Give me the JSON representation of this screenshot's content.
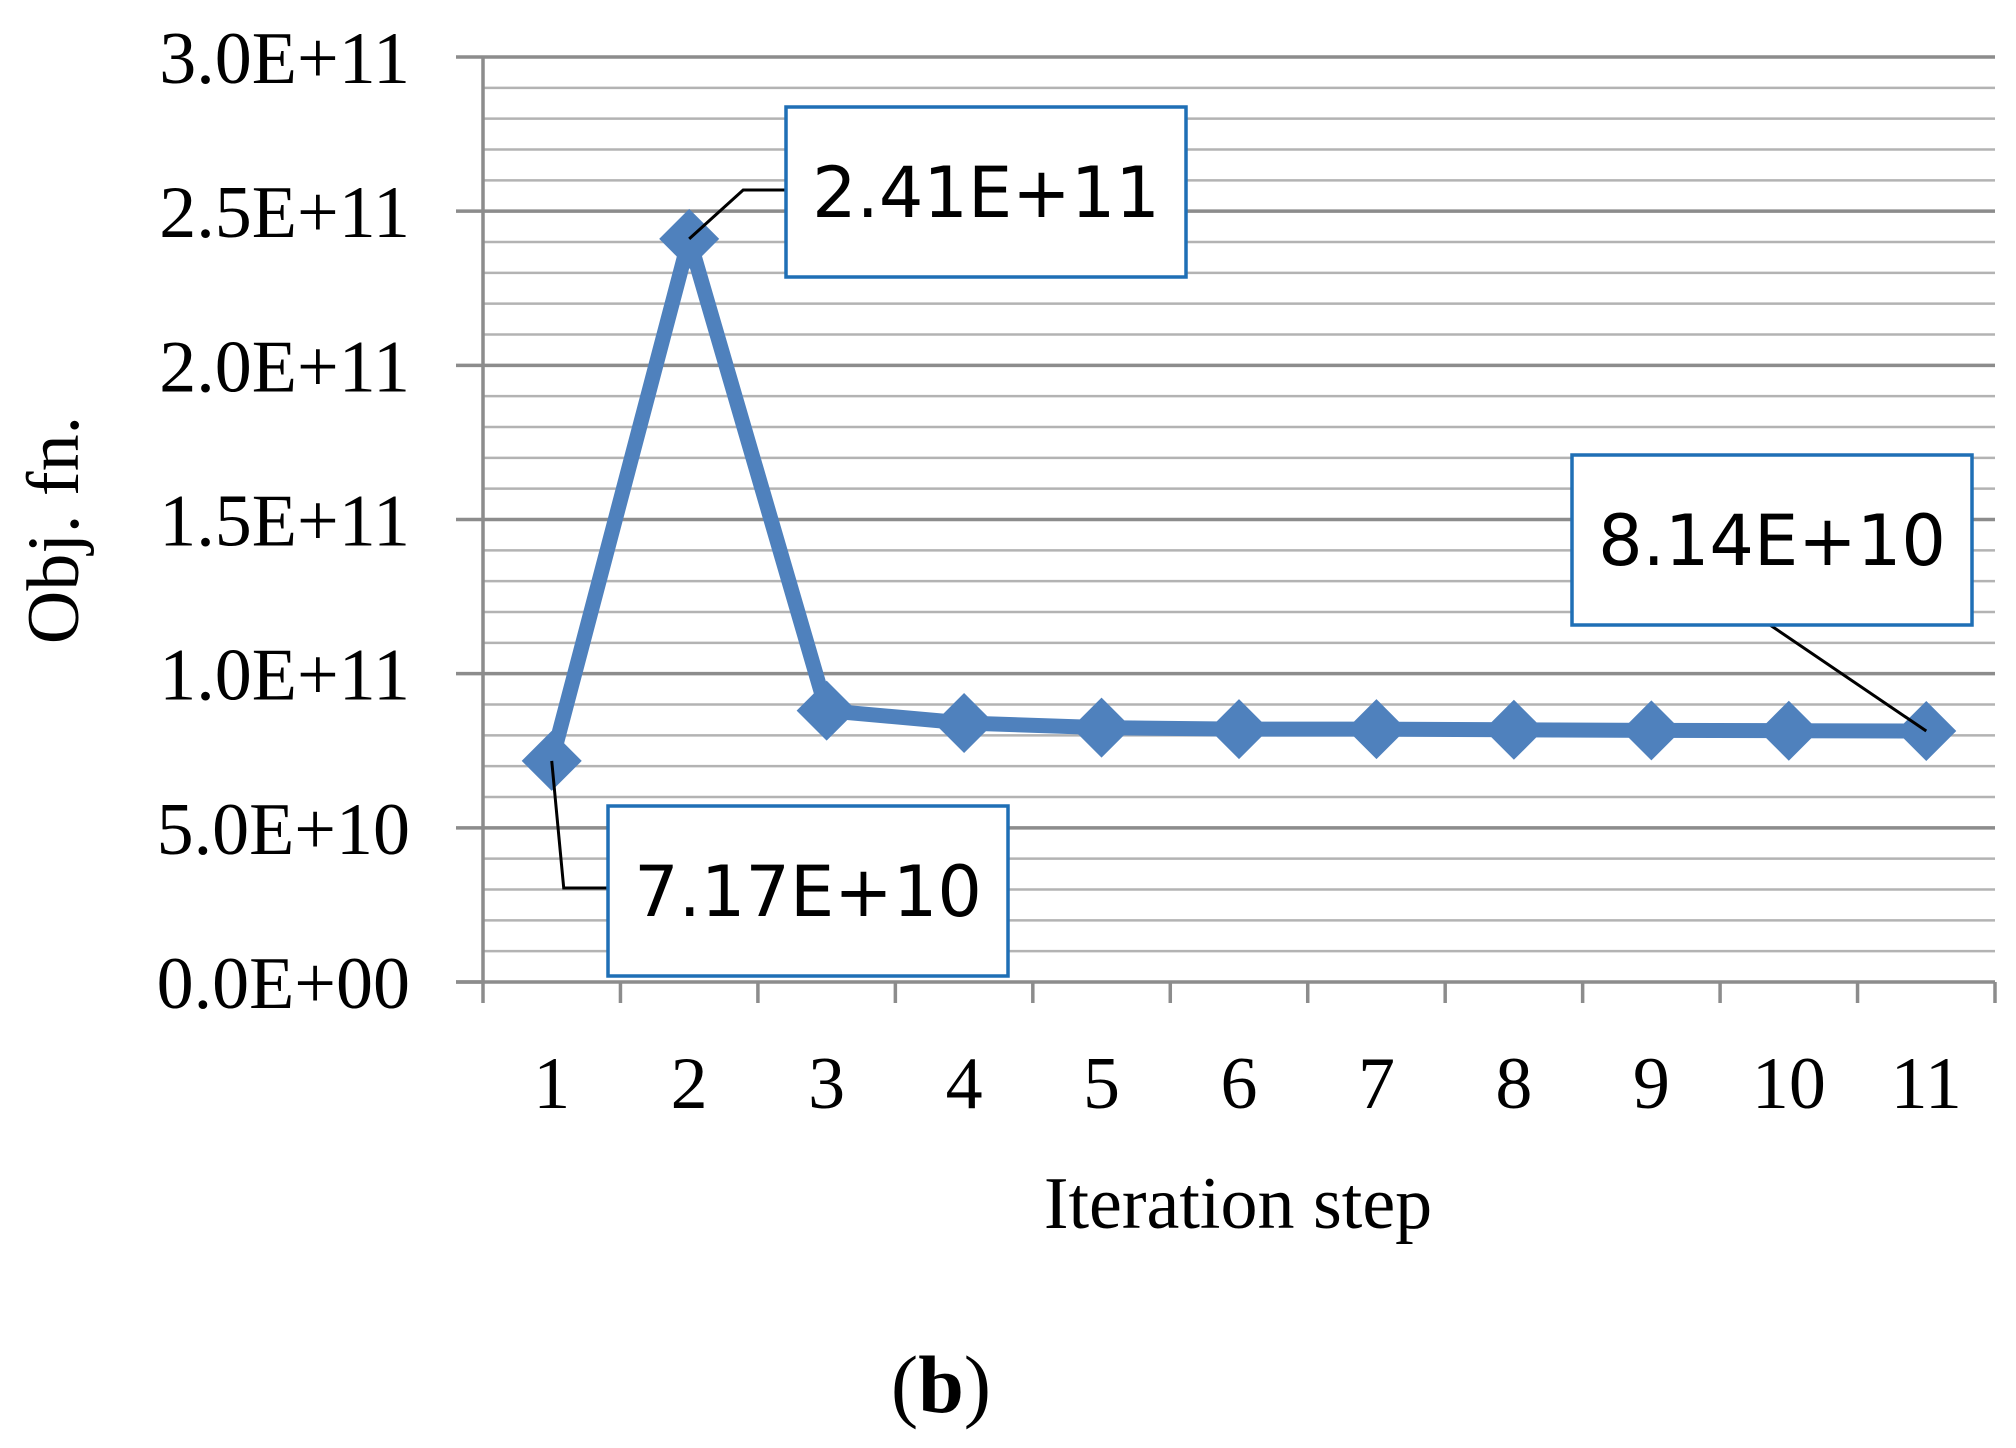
{
  "chart_data": {
    "type": "line",
    "title": "",
    "xlabel": "Iteration step",
    "ylabel": "Obj. fn.",
    "x": [
      1,
      2,
      3,
      4,
      5,
      6,
      7,
      8,
      9,
      10,
      11
    ],
    "x_tick_labels": [
      "1",
      "2",
      "3",
      "4",
      "5",
      "6",
      "7",
      "8",
      "9",
      "10",
      "11"
    ],
    "series": [
      {
        "values": [
          71700000000.0,
          241000000000.0,
          88000000000.0,
          84000000000.0,
          82500000000.0,
          82000000000.0,
          82000000000.0,
          81800000000.0,
          81600000000.0,
          81500000000.0,
          81400000000.0
        ],
        "color": "#4f81bd",
        "marker": "diamond"
      }
    ],
    "ylim": [
      0,
      300000000000.0
    ],
    "y_ticks": [
      0,
      50000000000.0,
      100000000000.0,
      150000000000.0,
      200000000000.0,
      250000000000.0,
      300000000000.0
    ],
    "y_tick_labels": [
      "0.0E+00",
      "5.0E+10",
      "1.0E+11",
      "1.5E+11",
      "2.0E+11",
      "2.5E+11",
      "3.0E+11"
    ],
    "grid": {
      "major": true,
      "minor": true
    },
    "annotations": [
      {
        "point_index": 0,
        "text": "7.17E+10",
        "placement": "below-right"
      },
      {
        "point_index": 1,
        "text": "2.41E+11",
        "placement": "above-right"
      },
      {
        "point_index": 10,
        "text": "8.14E+10",
        "placement": "above-left"
      }
    ],
    "colors": {
      "line": "#4f81bd",
      "callout_border": "#1f6fb5",
      "grid_major": "#8c8c8c",
      "grid_minor": "#b3b3b3",
      "axis": "#8c8c8c"
    }
  },
  "caption": {
    "open": "(",
    "letter": "b",
    "close": ")"
  }
}
